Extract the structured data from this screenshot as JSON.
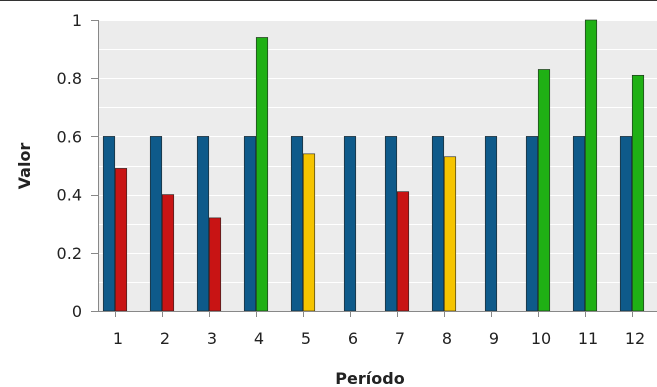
{
  "chart_data": {
    "type": "bar",
    "xlabel": "Período",
    "ylabel": "Valor",
    "ylim": [
      0,
      1
    ],
    "yticks": [
      {
        "value": 0,
        "label": "0"
      },
      {
        "value": 0.2,
        "label": "0.2"
      },
      {
        "value": 0.4,
        "label": "0.4"
      },
      {
        "value": 0.6,
        "label": "0.6"
      },
      {
        "value": 0.8,
        "label": "0.8"
      },
      {
        "value": 1,
        "label": "1"
      }
    ],
    "categories": [
      "1",
      "2",
      "3",
      "4",
      "5",
      "6",
      "7",
      "8",
      "9",
      "10",
      "11",
      "12"
    ],
    "grid": true,
    "colors": {
      "baseline": "#0e5a8a",
      "red": "#c81414",
      "yellow": "#f5c400",
      "green": "#1fb014",
      "plot_background": "#ececec",
      "gridline": "#ffffff"
    },
    "bars": [
      {
        "category": "1",
        "values": [
          {
            "value": 0.6,
            "color": "baseline"
          },
          {
            "value": 0.49,
            "color": "red"
          }
        ]
      },
      {
        "category": "2",
        "values": [
          {
            "value": 0.6,
            "color": "baseline"
          },
          {
            "value": 0.4,
            "color": "red"
          }
        ]
      },
      {
        "category": "3",
        "values": [
          {
            "value": 0.6,
            "color": "baseline"
          },
          {
            "value": 0.32,
            "color": "red"
          }
        ]
      },
      {
        "category": "4",
        "values": [
          {
            "value": 0.6,
            "color": "baseline"
          },
          {
            "value": 0.94,
            "color": "green"
          }
        ]
      },
      {
        "category": "5",
        "values": [
          {
            "value": 0.6,
            "color": "baseline"
          },
          {
            "value": 0.54,
            "color": "yellow"
          }
        ]
      },
      {
        "category": "6",
        "values": [
          {
            "value": 0.6,
            "color": "baseline"
          }
        ]
      },
      {
        "category": "7",
        "values": [
          {
            "value": 0.6,
            "color": "baseline"
          },
          {
            "value": 0.41,
            "color": "red"
          }
        ]
      },
      {
        "category": "8",
        "values": [
          {
            "value": 0.6,
            "color": "baseline"
          },
          {
            "value": 0.53,
            "color": "yellow"
          }
        ]
      },
      {
        "category": "9",
        "values": [
          {
            "value": 0.6,
            "color": "baseline"
          }
        ]
      },
      {
        "category": "10",
        "values": [
          {
            "value": 0.6,
            "color": "baseline"
          },
          {
            "value": 0.83,
            "color": "green"
          }
        ]
      },
      {
        "category": "11",
        "values": [
          {
            "value": 0.6,
            "color": "baseline"
          },
          {
            "value": 1.0,
            "color": "green"
          }
        ]
      },
      {
        "category": "12",
        "values": [
          {
            "value": 0.6,
            "color": "baseline"
          },
          {
            "value": 0.81,
            "color": "green"
          }
        ]
      }
    ]
  }
}
